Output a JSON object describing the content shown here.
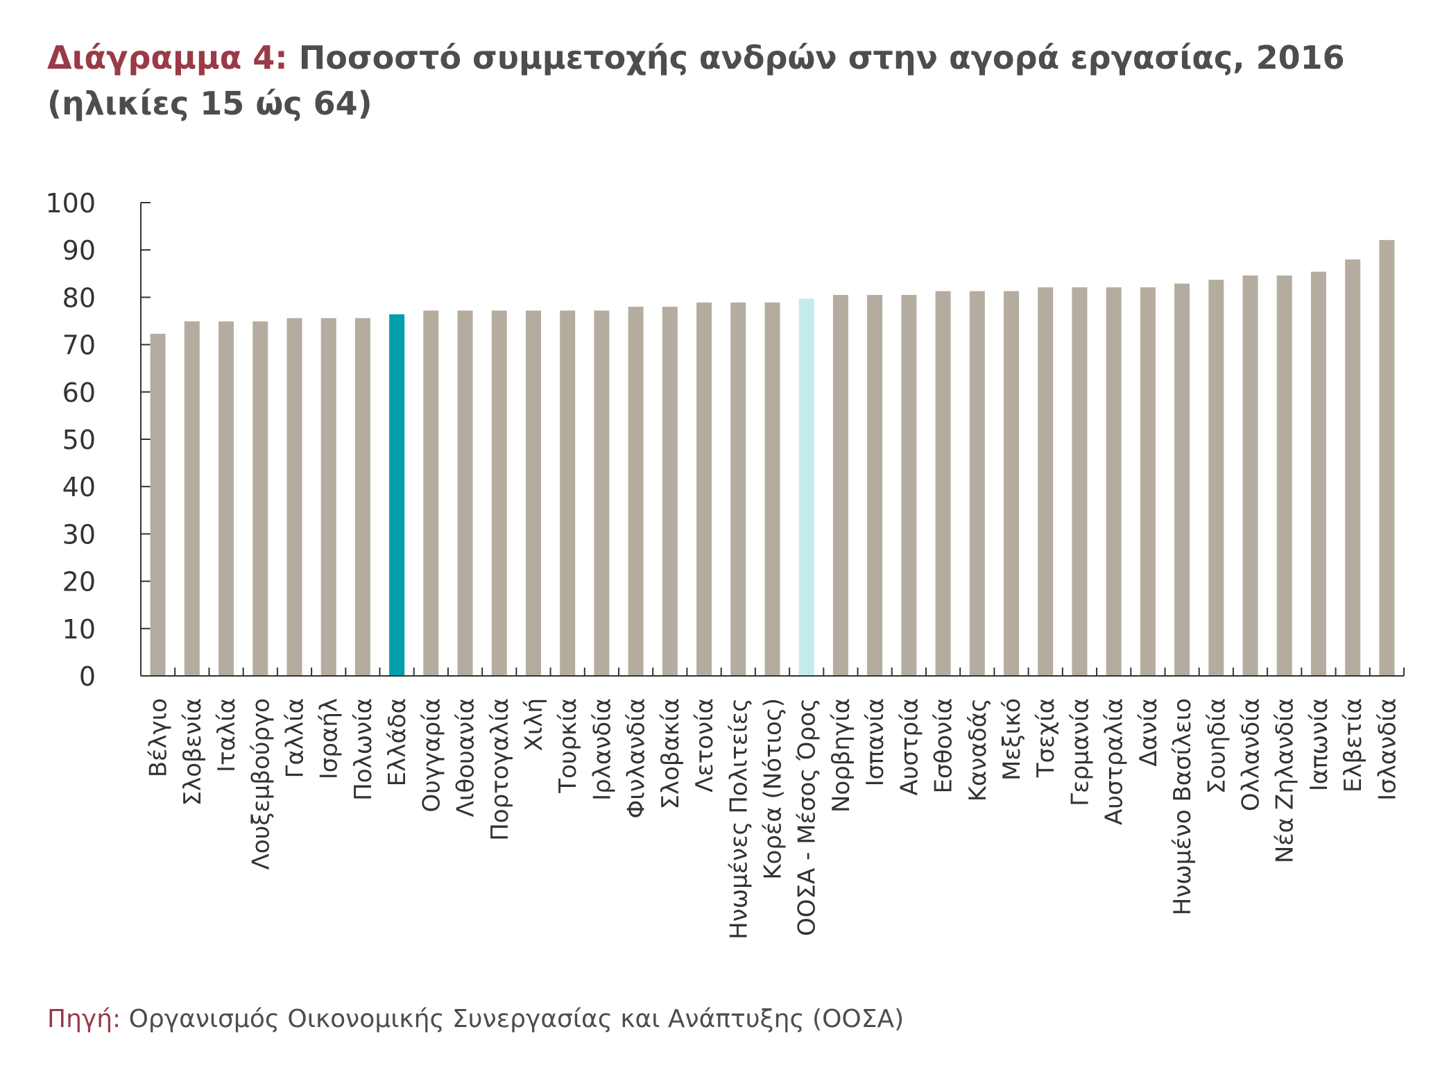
{
  "title": {
    "lead": "Διάγραμμα 4:",
    "text": "Ποσοστό συμμετοχής ανδρών στην αγορά εργασίας, 2016 (ηλικίες 15 ώς 64)"
  },
  "source": {
    "lead": "Πηγή:",
    "text": "Οργανισμός Οικονομικής Συνεργασίας και Ανάπτυξης (ΟΟΣΑ)"
  },
  "colors": {
    "bar": "#b5aca0",
    "greece": "#009fae",
    "oecd": "#c3ebec",
    "axis": "#333333",
    "title_accent": "#9b3a47",
    "text": "#4d4d4d"
  },
  "chart_data": {
    "type": "bar",
    "categories": [
      "Βέλγιο",
      "Σλοβενία",
      "Ιταλία",
      "Λουξεμβούργο",
      "Γαλλία",
      "Ισραήλ",
      "Πολωνία",
      "Ελλάδα",
      "Ουγγαρία",
      "Λιθουανία",
      "Πορτογαλία",
      "Χιλή",
      "Τουρκία",
      "Ιρλανδία",
      "Φινλανδία",
      "Σλοβακία",
      "Λετονία",
      "Ηνωμένες Πολιτείες",
      "Κορέα (Νότιος)",
      "ΟΟΣΑ - Μέσος Όρος",
      "Νορβηγία",
      "Ισπανία",
      "Αυστρία",
      "Εσθονία",
      "Καναδάς",
      "Μεξικό",
      "Τσεχία",
      "Γερμανία",
      "Αυστραλία",
      "Δανία",
      "Ηνωμένο Βασίλειο",
      "Σουηδία",
      "Ολλανδία",
      "Νέα Ζηλανδία",
      "Ιαπωνία",
      "Ελβετία",
      "Ισλανδία"
    ],
    "values": [
      72.3,
      74.9,
      74.9,
      74.9,
      75.6,
      75.6,
      75.6,
      76.4,
      77.2,
      77.2,
      77.2,
      77.2,
      77.2,
      77.2,
      78,
      78,
      78.9,
      78.9,
      78.9,
      79.7,
      80.5,
      80.5,
      80.5,
      81.3,
      81.3,
      81.3,
      82.1,
      82.1,
      82.1,
      82.1,
      82.9,
      83.7,
      84.6,
      84.6,
      85.4,
      88,
      92.1
    ],
    "highlight": {
      "Ελλάδα": "greece",
      "ΟΟΣΑ - Μέσος Όρος": "oecd"
    },
    "ylim": [
      0,
      100
    ],
    "yticks": [
      0,
      10,
      20,
      30,
      40,
      50,
      60,
      70,
      80,
      90,
      100
    ],
    "grid": false,
    "xlabel": "",
    "ylabel": ""
  }
}
